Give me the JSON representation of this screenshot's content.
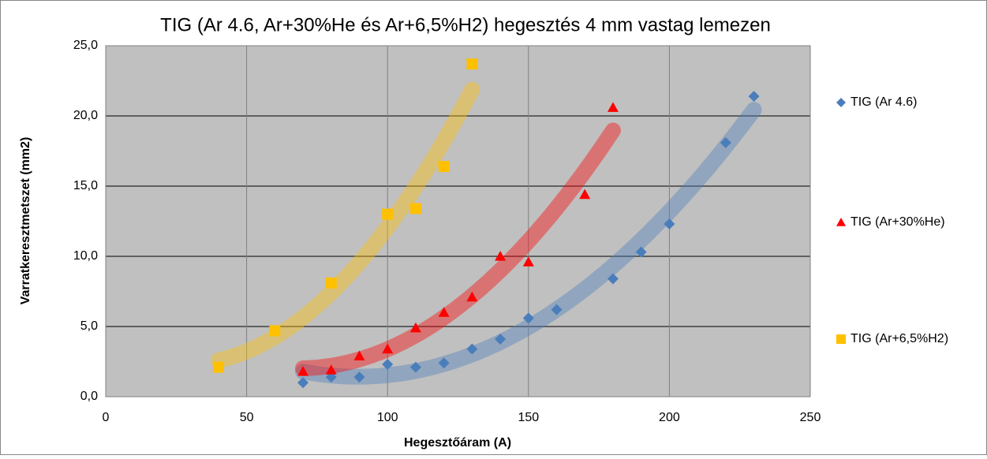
{
  "chart_data": {
    "type": "scatter",
    "title": "TIG (Ar 4.6, Ar+30%He és Ar+6,5%H2) hegesztés 4 mm vastag lemezen",
    "x_label": "Hegesztőáram (A)",
    "y_label": "Varratkeresztmetszet (mm2)",
    "xlim": [
      0,
      250
    ],
    "ylim": [
      0,
      25
    ],
    "xticks": [
      0,
      50,
      100,
      150,
      200,
      250
    ],
    "yticks": [
      {
        "value": 0,
        "label": "0,0"
      },
      {
        "value": 5,
        "label": "5,0"
      },
      {
        "value": 10,
        "label": "10,0"
      },
      {
        "value": 15,
        "label": "15,0"
      },
      {
        "value": 20,
        "label": "20,0"
      },
      {
        "value": 25,
        "label": "25,0"
      }
    ],
    "grid": true,
    "legend": "right",
    "trendline": true,
    "series": [
      {
        "name": "TIG (Ar 4.6)",
        "color": "#4a7ebb",
        "marker": "diamond",
        "x": [
          70,
          80,
          90,
          100,
          110,
          120,
          130,
          140,
          150,
          160,
          180,
          190,
          200,
          220,
          230
        ],
        "values": [
          1.0,
          1.4,
          1.4,
          2.3,
          2.1,
          2.4,
          3.4,
          4.1,
          5.6,
          6.2,
          8.4,
          10.3,
          12.3,
          18.1,
          21.4
        ]
      },
      {
        "name": "TIG (Ar+30%He)",
        "color": "#ff0000",
        "marker": "triangle",
        "x": [
          70,
          80,
          90,
          100,
          110,
          120,
          130,
          140,
          150,
          170,
          180
        ],
        "values": [
          1.8,
          1.9,
          2.9,
          3.4,
          4.9,
          6.0,
          7.1,
          10.0,
          9.6,
          14.4,
          20.6
        ]
      },
      {
        "name": "TIG (Ar+6,5%H2)",
        "color": "#ffc000",
        "marker": "square",
        "x": [
          40,
          60,
          80,
          100,
          110,
          120,
          130
        ],
        "values": [
          2.1,
          4.7,
          8.1,
          13.0,
          13.4,
          16.4,
          23.7
        ]
      }
    ]
  }
}
